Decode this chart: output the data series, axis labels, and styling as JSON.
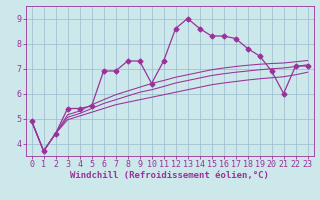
{
  "xlabel": "Windchill (Refroidissement éolien,°C)",
  "bg_color": "#cce8ea",
  "line_color": "#993399",
  "grid_color": "#99bbcc",
  "x_values": [
    0,
    1,
    2,
    3,
    4,
    5,
    6,
    7,
    8,
    9,
    10,
    11,
    12,
    13,
    14,
    15,
    16,
    17,
    18,
    19,
    20,
    21,
    22,
    23
  ],
  "y_main": [
    4.9,
    3.7,
    4.4,
    5.4,
    5.4,
    5.5,
    6.9,
    6.9,
    7.3,
    7.3,
    6.4,
    7.3,
    8.6,
    9.0,
    8.6,
    8.3,
    8.3,
    8.2,
    7.8,
    7.5,
    6.9,
    6.0,
    7.1,
    7.1
  ],
  "y_low": [
    4.9,
    3.7,
    4.4,
    4.95,
    5.1,
    5.25,
    5.4,
    5.55,
    5.65,
    5.75,
    5.85,
    5.95,
    6.05,
    6.15,
    6.25,
    6.35,
    6.42,
    6.48,
    6.54,
    6.59,
    6.63,
    6.67,
    6.75,
    6.85
  ],
  "y_mid": [
    4.9,
    3.7,
    4.4,
    5.05,
    5.2,
    5.4,
    5.6,
    5.75,
    5.9,
    6.05,
    6.15,
    6.28,
    6.42,
    6.52,
    6.62,
    6.72,
    6.79,
    6.85,
    6.9,
    6.95,
    6.99,
    7.02,
    7.08,
    7.15
  ],
  "y_high": [
    4.9,
    3.7,
    4.4,
    5.15,
    5.3,
    5.55,
    5.75,
    5.95,
    6.1,
    6.25,
    6.4,
    6.52,
    6.65,
    6.75,
    6.85,
    6.95,
    7.02,
    7.08,
    7.13,
    7.17,
    7.2,
    7.22,
    7.27,
    7.32
  ],
  "ylim": [
    3.5,
    9.5
  ],
  "xlim": [
    -0.5,
    23.5
  ],
  "yticks": [
    4,
    5,
    6,
    7,
    8,
    9
  ],
  "xticks": [
    0,
    1,
    2,
    3,
    4,
    5,
    6,
    7,
    8,
    9,
    10,
    11,
    12,
    13,
    14,
    15,
    16,
    17,
    18,
    19,
    20,
    21,
    22,
    23
  ],
  "markersize": 2.5,
  "linewidth": 0.9,
  "fontsize_label": 6.5,
  "fontsize_tick": 6
}
